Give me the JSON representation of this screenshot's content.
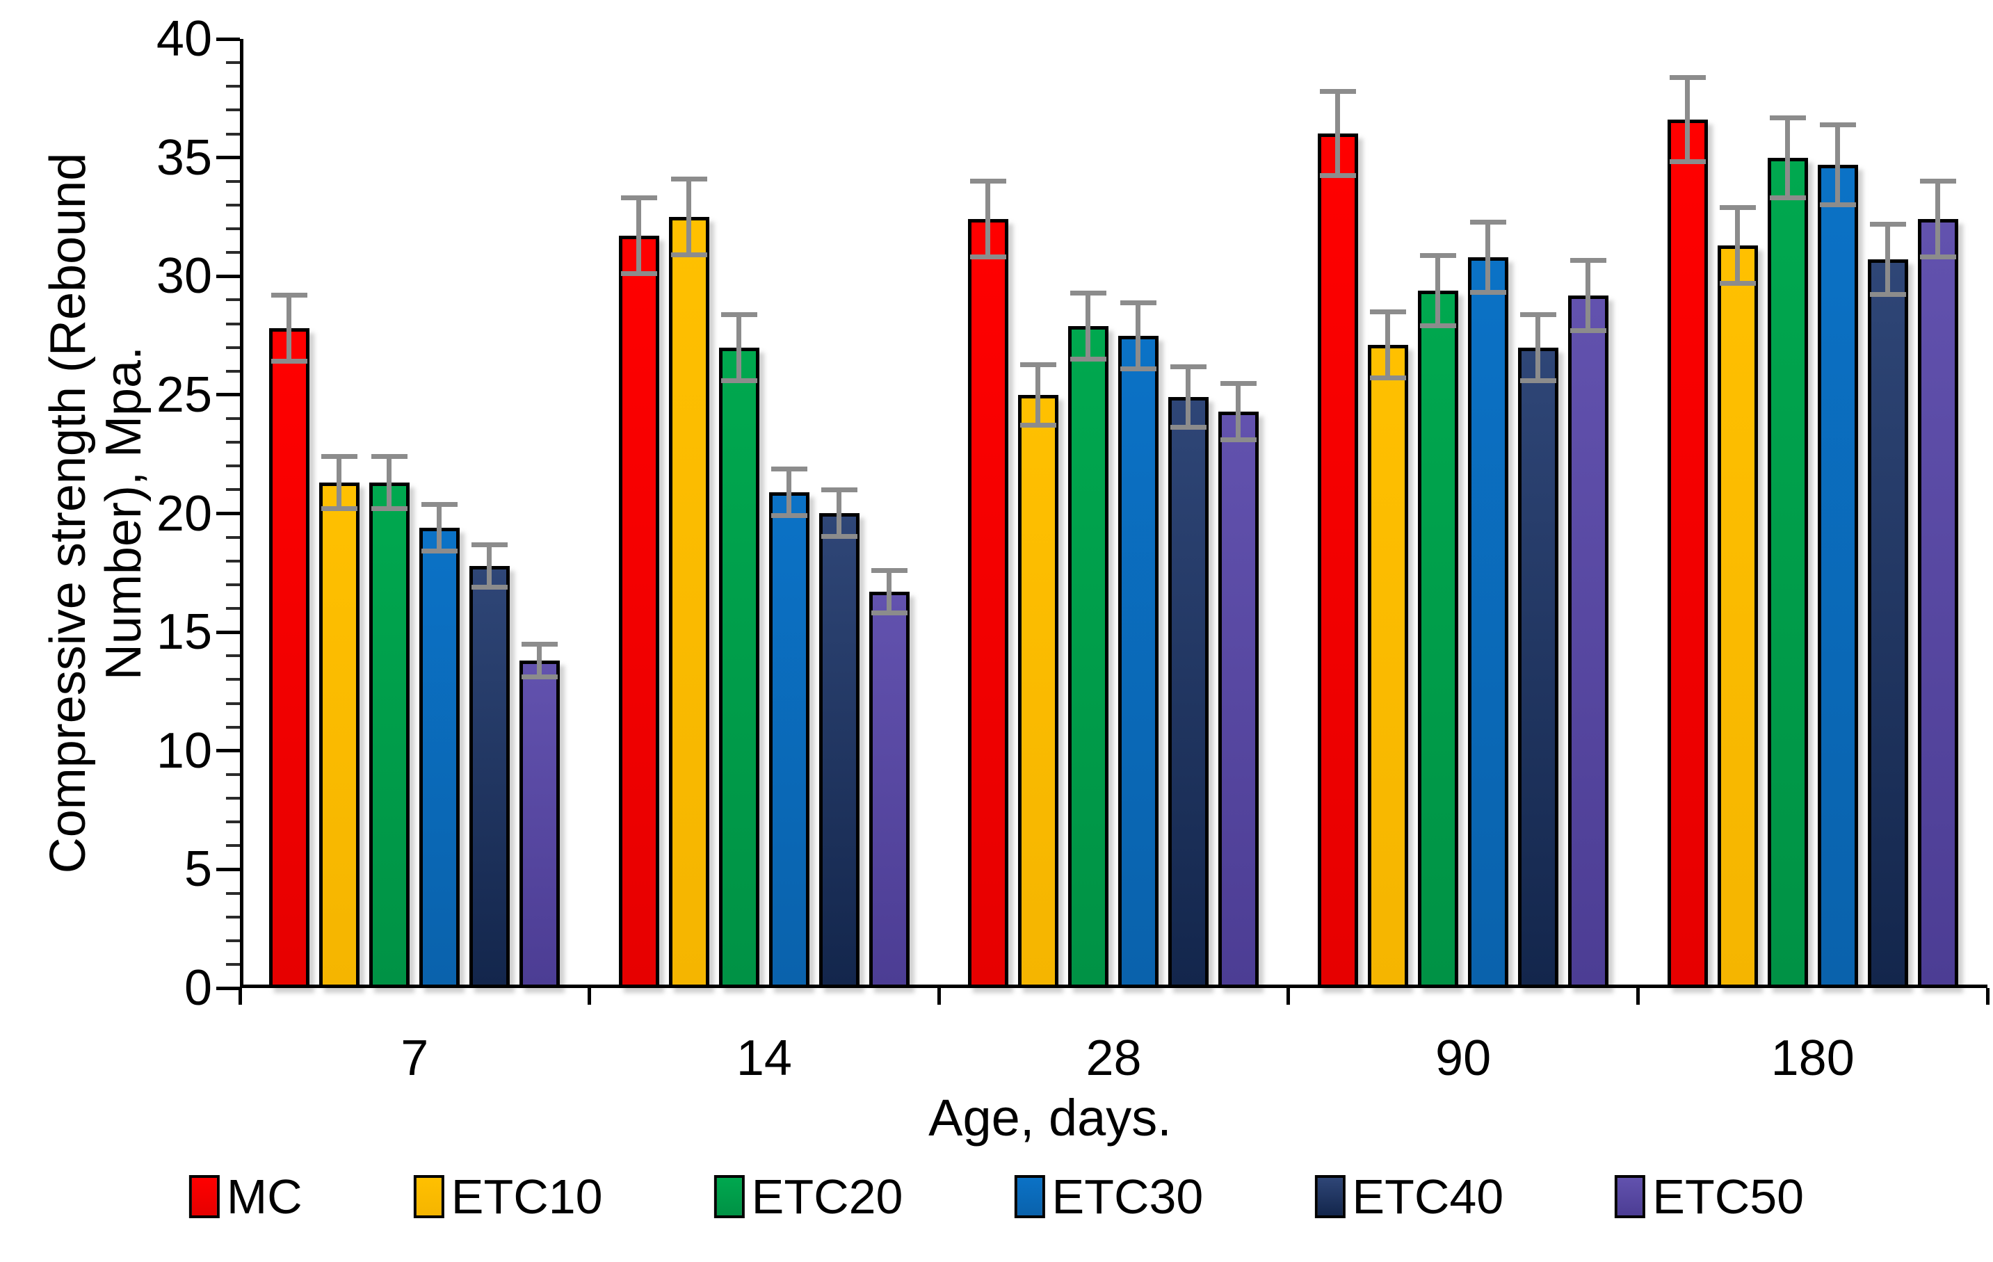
{
  "chart_data": {
    "type": "bar",
    "title": "",
    "xlabel": "Age, days.",
    "ylabel": "Compressive strength (Rebound Number), Mpa.",
    "ylabel_wrapped": "Compressive strength (Rebound\nNumber), Mpa.",
    "categories": [
      "7",
      "14",
      "28",
      "90",
      "180"
    ],
    "y_axis": {
      "min": 0,
      "max": 40,
      "major_step": 5,
      "minor_step": 1,
      "tick_labels": [
        "0",
        "5",
        "10",
        "15",
        "20",
        "25",
        "30",
        "35",
        "40"
      ]
    },
    "grid": false,
    "background": "#FFFFFF",
    "error_bar_color": "#8C8C8C",
    "legend_position": "bottom",
    "series": [
      {
        "name": "MC",
        "color": "#FF0000",
        "color2": "#E60000",
        "values": [
          27.8,
          31.7,
          32.4,
          36.0,
          36.6
        ],
        "errors": [
          1.4,
          1.6,
          1.6,
          1.8,
          1.8
        ]
      },
      {
        "name": "ETC10",
        "color": "#FFC000",
        "color2": "#F5B500",
        "values": [
          21.3,
          32.5,
          25.0,
          27.1,
          31.3
        ],
        "errors": [
          1.1,
          1.6,
          1.3,
          1.4,
          1.6
        ]
      },
      {
        "name": "ETC20",
        "color": "#00A84F",
        "color2": "#009245",
        "values": [
          21.3,
          27.0,
          27.9,
          29.4,
          35.0
        ],
        "errors": [
          1.1,
          1.4,
          1.4,
          1.5,
          1.7
        ]
      },
      {
        "name": "ETC30",
        "color": "#0B72C6",
        "color2": "#0A62AC",
        "values": [
          19.4,
          20.9,
          27.5,
          30.8,
          34.7
        ],
        "errors": [
          1.0,
          1.0,
          1.4,
          1.5,
          1.7
        ]
      },
      {
        "name": "ETC40",
        "color": "#2F4677",
        "color2": "#13264C",
        "values": [
          17.8,
          20.0,
          24.9,
          27.0,
          30.7
        ],
        "errors": [
          0.9,
          1.0,
          1.3,
          1.4,
          1.5
        ]
      },
      {
        "name": "ETC50",
        "color": "#6252AE",
        "color2": "#4C3D94",
        "values": [
          13.8,
          16.7,
          24.3,
          29.2,
          32.4
        ],
        "errors": [
          0.7,
          0.9,
          1.2,
          1.5,
          1.6
        ]
      }
    ]
  }
}
